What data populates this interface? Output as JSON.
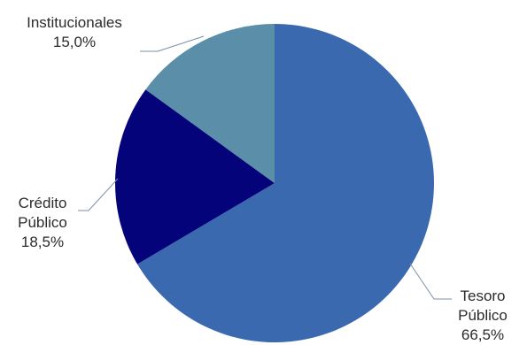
{
  "chart_data": {
    "type": "pie",
    "title": "",
    "start": "12 o'clock",
    "direction": "clockwise",
    "slices": [
      {
        "line1": "Tesoro",
        "line2": "Público",
        "value_label": "66,5%",
        "value": 66.5,
        "color": "#3a69b0"
      },
      {
        "line1": "Crédito",
        "line2": "Público",
        "value_label": "18,5%",
        "value": 18.5,
        "color": "#04037a"
      },
      {
        "line1": "Institucionales",
        "line2": "",
        "value_label": "15,0%",
        "value": 15.0,
        "color": "#5b8ea8"
      }
    ]
  }
}
